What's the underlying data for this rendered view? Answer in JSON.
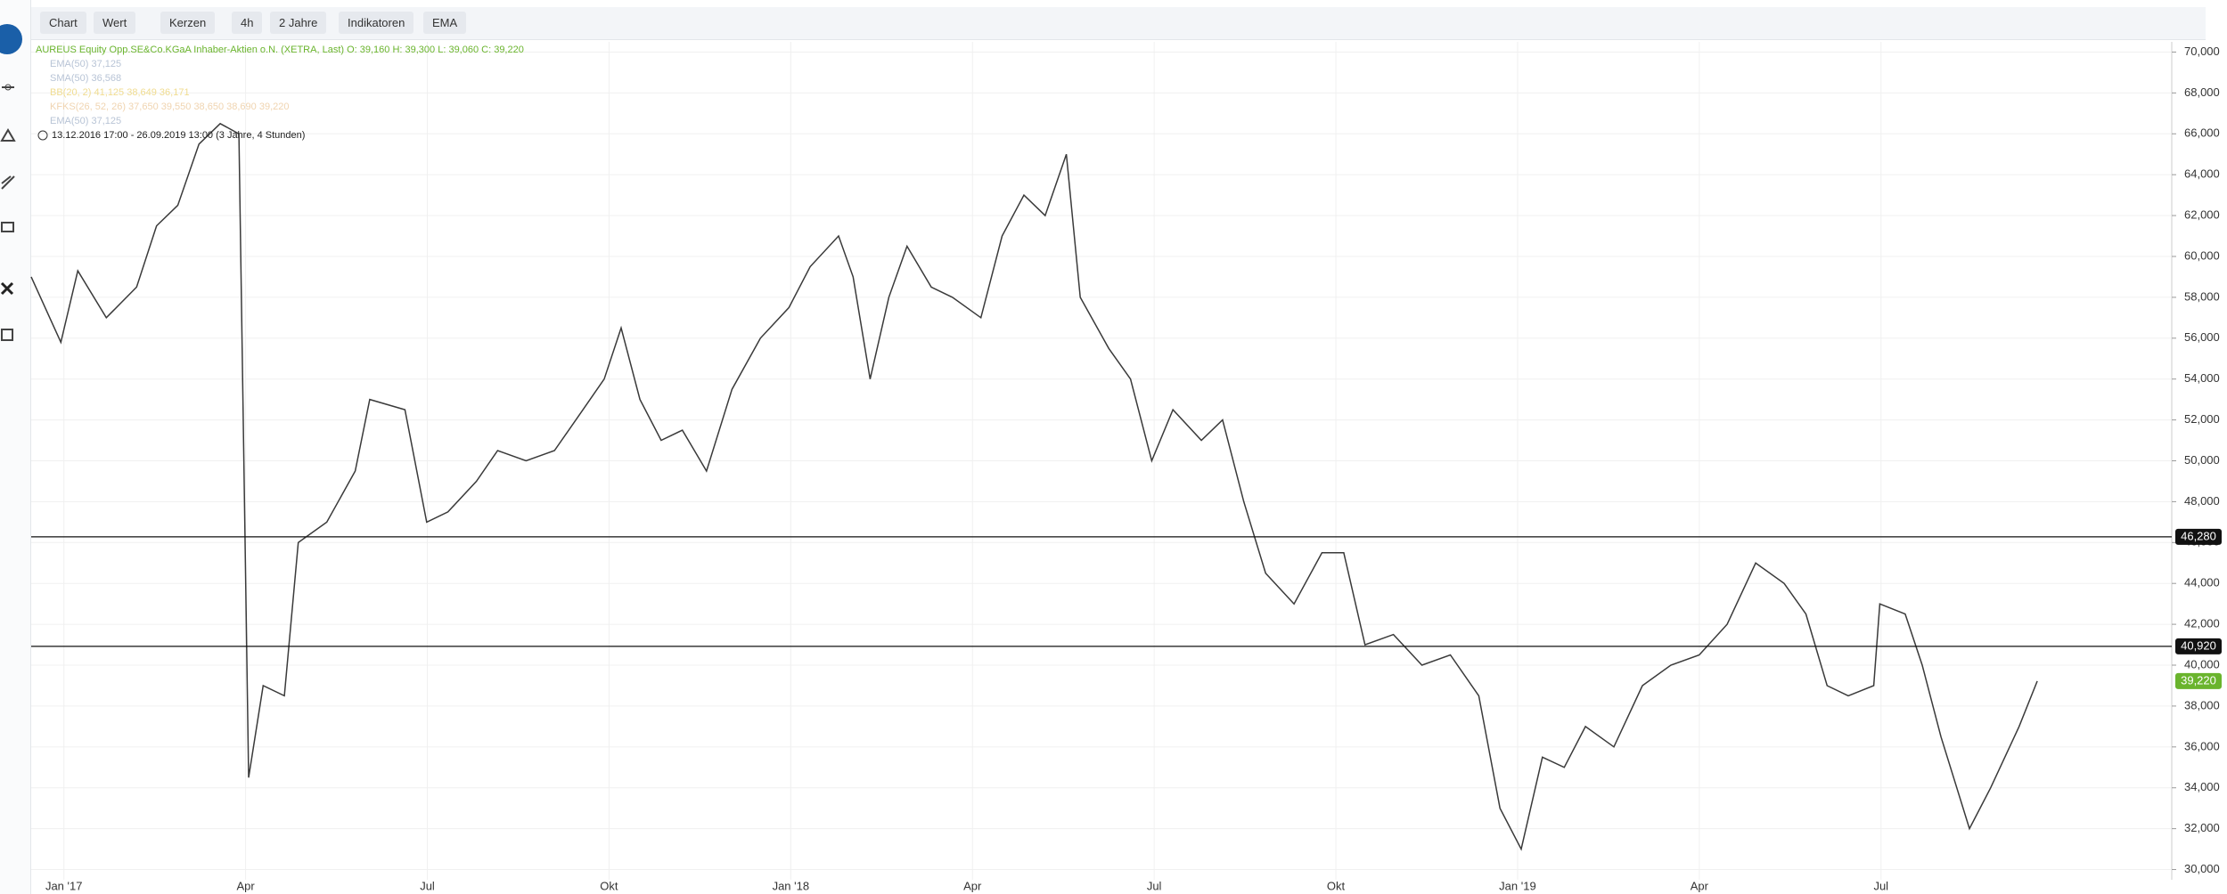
{
  "toolbar": {
    "items": [
      "Chart",
      "Wert",
      "Kerzen",
      "4h",
      "2 Jahre",
      "Indikatoren",
      "EMA"
    ]
  },
  "chart_data": {
    "type": "line",
    "legend_lines": [
      "AUREUS Equity Opp.SE&Co.KGaA Inhaber-Aktien o.N. (XETRA, Last)  O: 39,160  H: 39,300  L: 39,060  C: 39,220",
      "EMA(50)  37,125",
      "SMA(50)  36,568",
      "BB(20, 2)  41,125  38,649  36,171",
      "KFKS(26, 52, 26)  37,650  39,550  38,650  38,690  39,220",
      "EMA(50)  37,125",
      "13.12.2016 17:00 - 26.09.2019 13:00   (3 Jahre, 4 Stunden)"
    ],
    "series": [
      {
        "color": "#3a3a3a",
        "x": [
          -0.54,
          -0.05,
          0.23,
          0.7,
          1.2,
          1.53,
          1.88,
          2.23,
          2.58,
          2.89,
          3.05,
          3.29,
          3.64,
          3.87,
          4.34,
          4.81,
          5.05,
          5.63,
          5.99,
          6.34,
          6.81,
          7.16,
          7.63,
          8.1,
          8.57,
          8.92,
          9.2,
          9.51,
          9.86,
          10.21,
          10.61,
          11.03,
          11.5,
          11.97,
          12.32,
          12.79,
          13.03,
          13.31,
          13.62,
          13.92,
          14.32,
          14.67,
          15.14,
          15.49,
          15.85,
          16.2,
          16.55,
          16.78,
          17.25,
          17.61,
          17.96,
          18.31,
          18.78,
          19.13,
          19.48,
          19.84,
          20.31,
          20.77,
          21.13,
          21.48,
          21.95,
          22.42,
          22.89,
          23.36,
          23.71,
          24.06,
          24.41,
          24.77,
          25.12,
          25.59,
          26.06,
          26.53,
          27.0,
          27.46,
          27.93,
          28.4,
          28.76,
          29.11,
          29.46,
          29.88,
          29.98,
          30.4,
          30.68,
          30.99,
          31.46,
          31.81,
          32.28,
          32.58
        ],
        "values": [
          59000,
          55800,
          59300,
          57000,
          58500,
          61500,
          62500,
          65500,
          66500,
          66000,
          34500,
          39000,
          38500,
          46000,
          47000,
          49500,
          53000,
          52500,
          47000,
          47500,
          49000,
          50500,
          50000,
          50500,
          52500,
          54000,
          56500,
          53000,
          51000,
          51500,
          49500,
          53500,
          56000,
          57500,
          59500,
          61000,
          59000,
          54000,
          58000,
          60500,
          58500,
          58000,
          57000,
          61000,
          63000,
          62000,
          65000,
          58000,
          55500,
          54000,
          50000,
          52500,
          51000,
          52000,
          48000,
          44500,
          43000,
          45500,
          45500,
          41000,
          41500,
          40000,
          40500,
          38500,
          33000,
          31000,
          35500,
          35000,
          37000,
          36000,
          39000,
          40000,
          40500,
          42000,
          45000,
          44000,
          42500,
          39000,
          38500,
          39000,
          43000,
          42500,
          40000,
          36500,
          32000,
          34000,
          37000,
          39220
        ]
      }
    ],
    "hlines": [
      {
        "value": 46280,
        "label": "46,280"
      },
      {
        "value": 40920,
        "label": "40,920"
      }
    ],
    "last": {
      "value": 39220,
      "label": "39,220",
      "color": "#6ab42d"
    },
    "xlim": [
      -0.54,
      34.8
    ],
    "xticks": [
      {
        "value": 0,
        "label": "Jan '17"
      },
      {
        "value": 3,
        "label": "Apr"
      },
      {
        "value": 6,
        "label": "Jul"
      },
      {
        "value": 9,
        "label": "Okt"
      },
      {
        "value": 12,
        "label": "Jan '18"
      },
      {
        "value": 15,
        "label": "Apr"
      },
      {
        "value": 18,
        "label": "Jul"
      },
      {
        "value": 21,
        "label": "Okt"
      },
      {
        "value": 24,
        "label": "Jan '19"
      },
      {
        "value": 27,
        "label": "Apr"
      },
      {
        "value": 30,
        "label": "Jul"
      }
    ],
    "ylim": [
      29500,
      70500
    ],
    "yticks": [
      {
        "value": 30000,
        "label": "30,000"
      },
      {
        "value": 32000,
        "label": "32,000"
      },
      {
        "value": 34000,
        "label": "34,000"
      },
      {
        "value": 36000,
        "label": "36,000"
      },
      {
        "value": 38000,
        "label": "38,000"
      },
      {
        "value": 40000,
        "label": "40,000"
      },
      {
        "value": 42000,
        "label": "42,000"
      },
      {
        "value": 44000,
        "label": "44,000"
      },
      {
        "value": 46000,
        "label": "46,000"
      },
      {
        "value": 48000,
        "label": "48,000"
      },
      {
        "value": 50000,
        "label": "50,000"
      },
      {
        "value": 52000,
        "label": "52,000"
      },
      {
        "value": 54000,
        "label": "54,000"
      },
      {
        "value": 56000,
        "label": "56,000"
      },
      {
        "value": 58000,
        "label": "58,000"
      },
      {
        "value": 60000,
        "label": "60,000"
      },
      {
        "value": 62000,
        "label": "62,000"
      },
      {
        "value": 64000,
        "label": "64,000"
      },
      {
        "value": 66000,
        "label": "66,000"
      },
      {
        "value": 68000,
        "label": "68,000"
      },
      {
        "value": 70000,
        "label": "70,000"
      }
    ],
    "grid": true
  }
}
